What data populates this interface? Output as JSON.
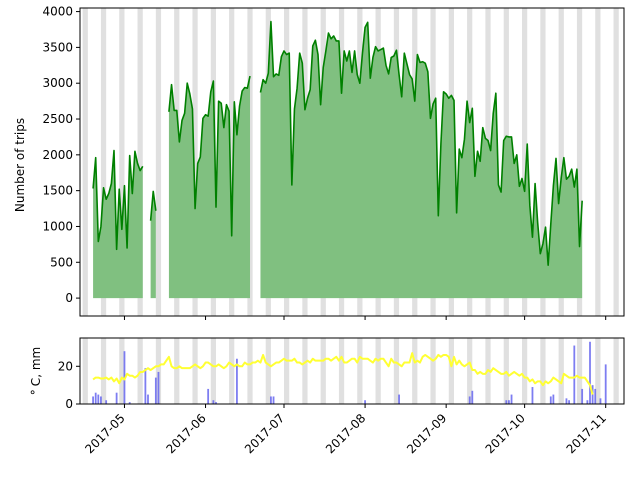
{
  "chart_data": [
    {
      "type": "area",
      "ylabel": "Number of trips",
      "xlabel": "",
      "ylim": [
        -250,
        4050
      ],
      "yticks": [
        0,
        500,
        1000,
        1500,
        2000,
        2500,
        3000,
        3500,
        4000
      ],
      "xlim": [
        "2017-04-14",
        "2017-11-08"
      ],
      "x_start": "2017-04-19",
      "weekend_shading": true,
      "colors": {
        "line": "#008000",
        "fill": "#80c080",
        "weekend": "#e0e0e0"
      },
      "series": [
        {
          "values": [
            1530,
            1960,
            790,
            1000,
            1540,
            1380,
            1460,
            1600,
            2060,
            680,
            1520,
            960,
            1570,
            700,
            1990,
            1460,
            2050,
            1880,
            1780,
            1840,
            null,
            null,
            1080,
            1490,
            1220,
            null,
            null,
            null,
            null,
            2600,
            2980,
            2620,
            2620,
            2180,
            2480,
            2580,
            3000,
            2850,
            2640,
            1250,
            1880,
            1970,
            2510,
            2560,
            2540,
            2880,
            3030,
            1270,
            2750,
            2720,
            2380,
            2700,
            2610,
            870,
            2740,
            2280,
            2680,
            2890,
            2940,
            2930,
            3100,
            null,
            null,
            null,
            2870,
            3050,
            3000,
            3140,
            3860,
            3090,
            3130,
            3110,
            3370,
            3450,
            3400,
            3420,
            1580,
            2640,
            2930,
            3420,
            3280,
            2630,
            2790,
            2910,
            3520,
            3600,
            3400,
            2700,
            3220,
            3450,
            3700,
            3620,
            3660,
            3590,
            3590,
            2860,
            3450,
            3310,
            3450,
            3150,
            3450,
            3120,
            3000,
            3420,
            3780,
            3850,
            3070,
            3360,
            3510,
            3450,
            3470,
            3490,
            3250,
            3130,
            3360,
            3380,
            3460,
            3120,
            2810,
            3420,
            3270,
            3120,
            3060,
            2750,
            3400,
            3290,
            3300,
            3280,
            3160,
            2510,
            2710,
            2790,
            1150,
            2160,
            2880,
            2850,
            2790,
            2830,
            2760,
            1190,
            2080,
            1960,
            2220,
            2750,
            2450,
            2650,
            1700,
            2050,
            1910,
            2380,
            2230,
            2200,
            2060,
            2580,
            2860,
            1580,
            1480,
            2200,
            2260,
            2250,
            2250,
            1880,
            2000,
            1560,
            1670,
            1490,
            2150,
            1290,
            850,
            1600,
            1050,
            620,
            760,
            990,
            460,
            1030,
            1570,
            1950,
            1320,
            1680,
            1960,
            1660,
            1700,
            1800,
            1550,
            1800,
            720,
            1360
          ]
        }
      ]
    },
    {
      "type": "bar",
      "ylabel": "$^\\circ$ C, mm",
      "ylim": [
        0,
        35
      ],
      "yticks": [
        0,
        20
      ],
      "x_tick_labels": [
        "2017-05",
        "2017-06",
        "2017-07",
        "2017-08",
        "2017-09",
        "2017-10",
        "2017-11"
      ],
      "x_tick_dates": [
        "2017-05-01",
        "2017-06-01",
        "2017-07-01",
        "2017-08-01",
        "2017-09-01",
        "2017-10-01",
        "2017-11-01"
      ],
      "colors": {
        "temperature": "#ffff33",
        "precipitation": "#6666ee"
      },
      "series": [
        {
          "name": "temperature",
          "values": [
            13,
            14,
            14,
            13.5,
            13.5,
            14,
            13,
            14,
            12,
            13.5,
            11,
            14,
            13,
            16,
            15,
            15,
            14,
            15,
            17,
            17,
            18,
            19,
            18,
            19,
            20,
            20,
            21,
            21,
            23,
            25,
            20,
            19,
            19,
            20,
            19,
            19,
            19,
            19,
            20,
            21,
            20,
            19,
            20,
            22,
            22,
            21,
            20,
            20,
            21,
            20,
            19,
            20,
            22,
            21,
            20,
            21,
            20,
            20,
            22,
            21,
            21,
            22,
            22,
            23,
            22,
            26,
            22,
            21,
            20,
            21,
            22,
            22,
            23,
            24,
            23,
            23,
            23,
            24,
            22,
            22,
            21,
            22,
            23,
            22,
            24,
            23,
            23,
            23,
            23,
            24,
            24,
            23,
            24,
            25,
            23,
            25,
            22,
            22,
            23,
            24,
            24,
            22,
            25,
            24,
            24,
            24,
            23,
            22,
            24,
            23,
            24,
            24,
            22,
            20,
            24,
            22,
            22,
            21,
            20,
            22,
            22,
            22,
            27,
            22,
            23,
            22,
            25,
            26,
            25,
            24,
            23,
            24,
            26,
            25,
            26,
            26,
            25,
            20,
            25,
            21,
            23,
            21,
            20,
            21,
            22,
            18,
            18,
            16,
            17,
            16,
            16,
            18,
            17,
            19,
            18,
            17,
            16,
            16,
            17,
            15,
            16,
            17,
            16,
            15,
            16,
            14,
            14,
            12,
            13,
            11,
            12,
            12,
            10,
            12,
            11,
            12,
            14,
            13,
            12,
            11,
            16,
            15,
            14,
            14,
            14,
            15,
            14,
            14,
            14,
            12,
            10,
            5
          ]
        },
        {
          "name": "precipitation",
          "bars": [
            [
              0,
              4
            ],
            [
              1,
              6
            ],
            [
              2,
              5
            ],
            [
              3,
              4
            ],
            [
              5,
              2
            ],
            [
              9,
              6
            ],
            [
              12,
              28
            ],
            [
              14,
              1
            ],
            [
              20,
              19
            ],
            [
              21,
              5
            ],
            [
              24,
              14
            ],
            [
              25,
              17
            ],
            [
              44,
              8
            ],
            [
              46,
              2
            ],
            [
              47,
              1
            ],
            [
              55,
              24
            ],
            [
              68,
              4
            ],
            [
              69,
              4
            ],
            [
              104,
              2
            ],
            [
              117,
              5
            ],
            [
              144,
              4
            ],
            [
              145,
              7
            ],
            [
              158,
              2
            ],
            [
              159,
              2
            ],
            [
              160,
              5
            ],
            [
              168,
              9
            ],
            [
              175,
              4
            ],
            [
              176,
              5
            ],
            [
              181,
              3
            ],
            [
              182,
              2
            ],
            [
              184,
              31
            ],
            [
              187,
              8
            ],
            [
              189,
              2
            ],
            [
              190,
              33
            ],
            [
              191,
              10
            ],
            [
              192,
              8
            ],
            [
              194,
              3
            ],
            [
              196,
              21
            ]
          ]
        }
      ]
    }
  ]
}
